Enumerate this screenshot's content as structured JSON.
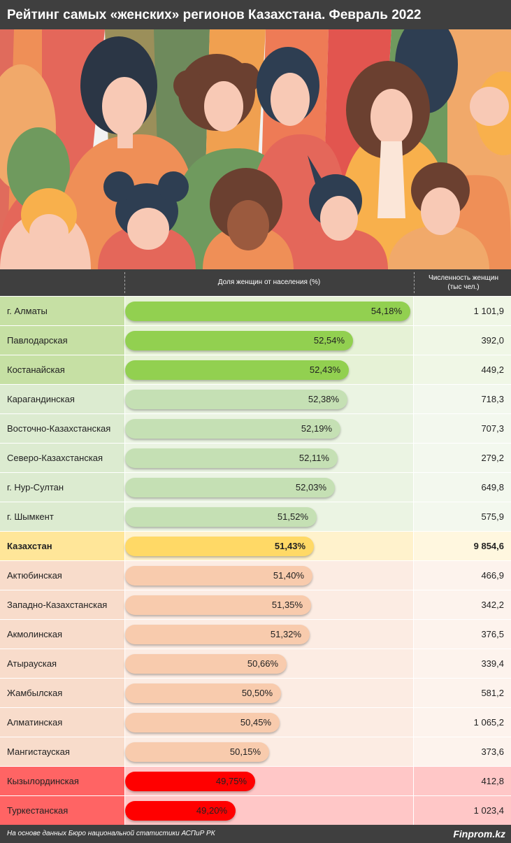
{
  "title": "Рейтинг самых «женских» регионов Казахстана. Февраль 2022",
  "header": {
    "share_label": "Доля женщин от населения (%)",
    "count_label_line1": "Численность женщин",
    "count_label_line2": "(тыс чел.)"
  },
  "footer": {
    "source": "На основе данных Бюро национальной статистики АСПиР РК",
    "brand": "Finprom.kz"
  },
  "colors": {
    "dark": "#3f3f3f",
    "green_bar": "#92d050",
    "green_bar_light": "#c5e0b4",
    "total_bar": "#ffd966",
    "peach_bar": "#f8cbad",
    "red_bar": "#ff0000"
  },
  "chart_data": {
    "type": "bar",
    "orientation": "horizontal",
    "categories": [
      "г. Алматы",
      "Павлодарская",
      "Костанайская",
      "Карагандинская",
      "Восточно-Казахстанская",
      "Северо-Казахстанская",
      "г. Нур-Султан",
      "г. Шымкент",
      "Казахстан",
      "Актюбинская",
      "Западно-Казахстанская",
      "Акмолинская",
      "Атырауская",
      "Жамбылская",
      "Алматинская",
      "Мангистауская",
      "Кызылординская",
      "Туркестанская"
    ],
    "series": [
      {
        "name": "Доля женщин от населения (%)",
        "values": [
          54.18,
          52.54,
          52.43,
          52.38,
          52.19,
          52.11,
          52.03,
          51.52,
          51.43,
          51.4,
          51.35,
          51.32,
          50.66,
          50.5,
          50.45,
          50.15,
          49.75,
          49.2
        ]
      },
      {
        "name": "Численность женщин (тыс чел.)",
        "values": [
          1101.9,
          392.0,
          449.2,
          718.3,
          707.3,
          279.2,
          649.8,
          575.9,
          9854.6,
          466.9,
          342.2,
          376.5,
          339.4,
          581.2,
          1065.2,
          373.6,
          412.8,
          1023.4
        ]
      }
    ],
    "rows": [
      {
        "name": "г. Алматы",
        "pct": 54.18,
        "pct_label": "54,18%",
        "count_label": "1 101,9",
        "group": "top"
      },
      {
        "name": "Павлодарская",
        "pct": 52.54,
        "pct_label": "52,54%",
        "count_label": "392,0",
        "group": "top"
      },
      {
        "name": "Костанайская",
        "pct": 52.43,
        "pct_label": "52,43%",
        "count_label": "449,2",
        "group": "top"
      },
      {
        "name": "Карагандинская",
        "pct": 52.38,
        "pct_label": "52,38%",
        "count_label": "718,3",
        "group": "above"
      },
      {
        "name": "Восточно-Казахстанская",
        "pct": 52.19,
        "pct_label": "52,19%",
        "count_label": "707,3",
        "group": "above"
      },
      {
        "name": "Северо-Казахстанская",
        "pct": 52.11,
        "pct_label": "52,11%",
        "count_label": "279,2",
        "group": "above"
      },
      {
        "name": "г. Нур-Султан",
        "pct": 52.03,
        "pct_label": "52,03%",
        "count_label": "649,8",
        "group": "above"
      },
      {
        "name": "г. Шымкент",
        "pct": 51.52,
        "pct_label": "51,52%",
        "count_label": "575,9",
        "group": "above"
      },
      {
        "name": "Казахстан",
        "pct": 51.43,
        "pct_label": "51,43%",
        "count_label": "9 854,6",
        "group": "total"
      },
      {
        "name": "Актюбинская",
        "pct": 51.4,
        "pct_label": "51,40%",
        "count_label": "466,9",
        "group": "below"
      },
      {
        "name": "Западно-Казахстанская",
        "pct": 51.35,
        "pct_label": "51,35%",
        "count_label": "342,2",
        "group": "below"
      },
      {
        "name": "Акмолинская",
        "pct": 51.32,
        "pct_label": "51,32%",
        "count_label": "376,5",
        "group": "below"
      },
      {
        "name": "Атырауская",
        "pct": 50.66,
        "pct_label": "50,66%",
        "count_label": "339,4",
        "group": "below"
      },
      {
        "name": "Жамбылская",
        "pct": 50.5,
        "pct_label": "50,50%",
        "count_label": "581,2",
        "group": "below"
      },
      {
        "name": "Алматинская",
        "pct": 50.45,
        "pct_label": "50,45%",
        "count_label": "1 065,2",
        "group": "below"
      },
      {
        "name": "Мангистауская",
        "pct": 50.15,
        "pct_label": "50,15%",
        "count_label": "373,6",
        "group": "below"
      },
      {
        "name": "Кызылординская",
        "pct": 49.75,
        "pct_label": "49,75%",
        "count_label": "412,8",
        "group": "bottom"
      },
      {
        "name": "Туркестанская",
        "pct": 49.2,
        "pct_label": "49,20%",
        "count_label": "1 023,4",
        "group": "bottom"
      }
    ]
  }
}
